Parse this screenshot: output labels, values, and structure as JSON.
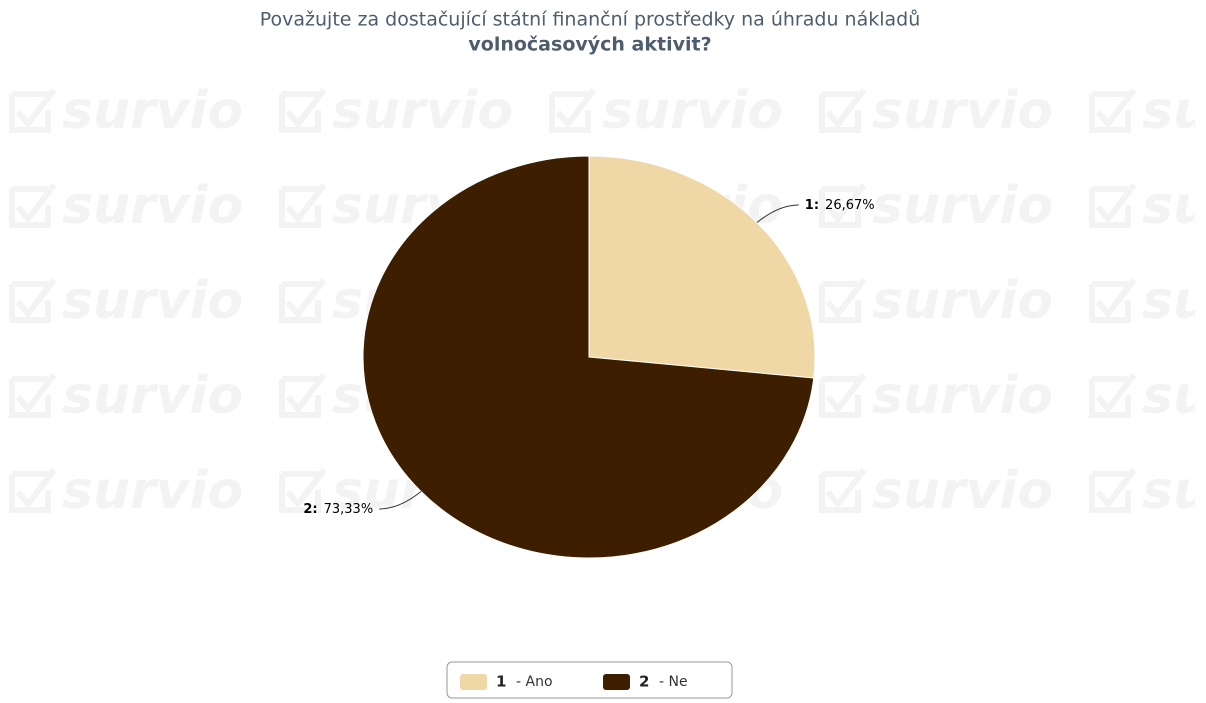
{
  "chart_data": {
    "type": "pie",
    "title": "Považujte za dostačující státní finanční prostředky na úhradu nákladů",
    "title_bold": "volnočasových aktivit?",
    "watermark": "survio",
    "keys": [
      "1",
      "2"
    ],
    "label_keys": [
      "1:",
      "2:"
    ],
    "categories": [
      "- Ano",
      "- Ne"
    ],
    "values": [
      26.67,
      73.33
    ],
    "value_labels": [
      "26,67%",
      "73,33%"
    ],
    "colors": [
      "#f0d7a6",
      "#3d1f00"
    ],
    "legend": "bottom"
  }
}
